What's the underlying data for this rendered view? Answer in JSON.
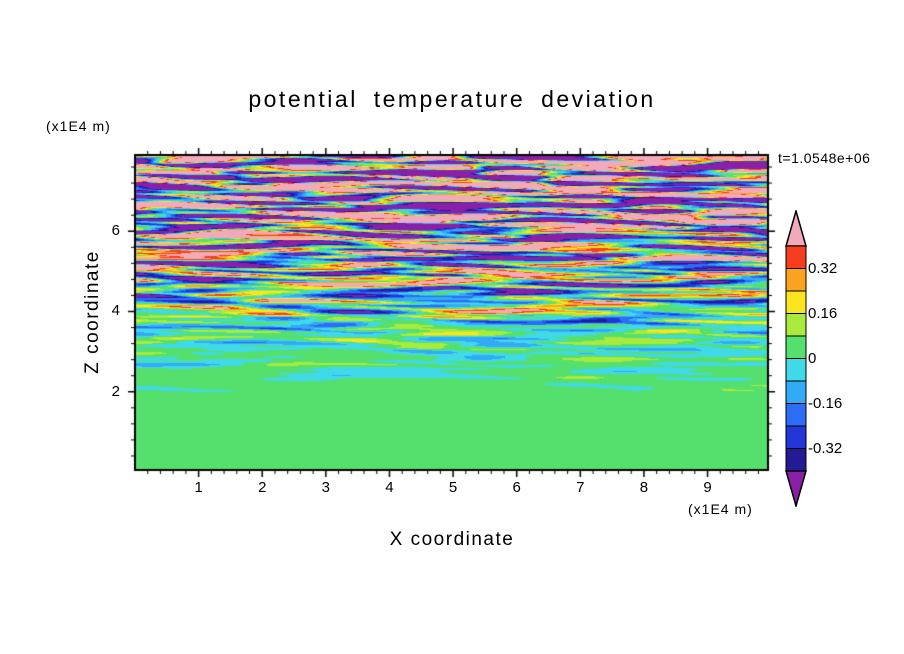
{
  "chart_data": {
    "type": "filled_contour",
    "title": "potential temperature deviation",
    "xlabel": "X coordinate",
    "zlabel": "Z coordinate",
    "x_axis_unit": "(x1E4 m)",
    "z_axis_unit": "(x1E4 m)",
    "timestamp": "t=1.0548e+06",
    "x_range": [
      0.0,
      9.95
    ],
    "z_range": [
      0.05,
      7.9
    ],
    "x_ticks_major": [
      1,
      2,
      3,
      4,
      5,
      6,
      7,
      8,
      9
    ],
    "x_tick_labels": [
      "1",
      "2",
      "3",
      "4",
      "5",
      "6",
      "7",
      "8",
      "9"
    ],
    "x_minor_step": 0.2,
    "z_ticks_major": [
      2,
      4,
      6
    ],
    "z_tick_labels": [
      "2",
      "4",
      "6"
    ],
    "z_minor_step": 0.4,
    "levels_min": -0.4,
    "levels_max": 0.4,
    "levels_step": 0.08,
    "colorbar": {
      "labels": [
        "0.32",
        "0.16",
        "0",
        "-0.16",
        "-0.32"
      ],
      "label_values": [
        0.32,
        0.16,
        0,
        -0.16,
        -0.32
      ],
      "colors_ascending": [
        "#8a1fa8",
        "#241a96",
        "#2336d8",
        "#2d6cf5",
        "#33aaf5",
        "#3fd9e8",
        "#55e06e",
        "#a9ea3c",
        "#fbe51f",
        "#fba320",
        "#f73d1f",
        "#f2a9ba"
      ],
      "below_min_color": "#8a1fa8",
      "above_max_color": "#f2a9ba"
    },
    "field_description": "Horizontally elongated turbulent streaks of potential temperature deviation; nearly uniform weakly positive (green) layer below z=2, thin weak cyan/green/yellow streaks for 2<z<4, strong large-amplitude red/orange/pink/navy/purple streaks in upper half up to z=7.9.",
    "field_synthesis": {
      "offset_bottom": 0.04,
      "envelope": [
        [
          0,
          0.035
        ],
        [
          0.24,
          0.04
        ],
        [
          0.3,
          0.1
        ],
        [
          0.42,
          0.22
        ],
        [
          0.55,
          0.55
        ],
        [
          0.7,
          0.9
        ],
        [
          0.85,
          1.1
        ],
        [
          1,
          1.2
        ]
      ],
      "norm": 2.0,
      "components": [
        {
          "a": 1.0,
          "fz": 22,
          "fx": 0.8,
          "b": 2.2,
          "gx": 1.7,
          "gz": 3.0,
          "c": 1.0
        },
        {
          "a": 0.8,
          "fz": 35,
          "fx": -1.3,
          "b": 1.8,
          "gx": 2.3,
          "gz": 5.0,
          "c": 2.7
        },
        {
          "a": 0.6,
          "fz": 13,
          "fx": 0.5,
          "b": 2.8,
          "gx": 1.1,
          "gz": 2.0,
          "c": 4.1
        },
        {
          "a": 0.5,
          "fz": 50,
          "fx": 1.9,
          "b": 1.2,
          "gx": 3.1,
          "gz": 7.0,
          "c": 0.6
        },
        {
          "a": 0.45,
          "fz": 8,
          "fx": -0.6,
          "b": 3.2,
          "gx": 0.7,
          "gz": 1.5,
          "c": 3.3
        },
        {
          "a": 0.3,
          "fz": 70,
          "fx": 2.6,
          "b": 0.9,
          "gx": 4.2,
          "gz": 9.0,
          "c": 5.2
        }
      ]
    },
    "colors": {
      "frame": "#000000",
      "background": "#ffffff",
      "text": "#000000"
    }
  }
}
